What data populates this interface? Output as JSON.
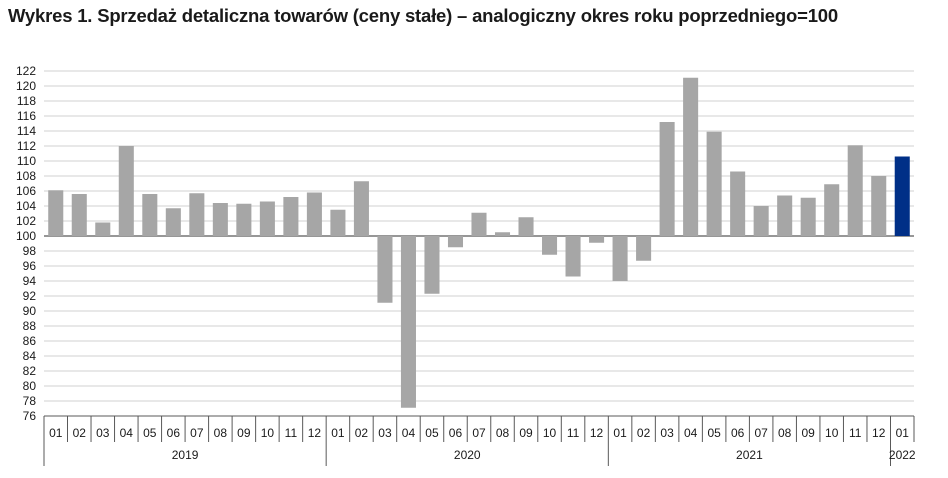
{
  "chart_data": {
    "type": "bar",
    "title": "Wykres 1. Sprzedaż detaliczna towarów (ceny stałe) – analogiczny okres roku poprzedniego=100",
    "baseline": 100,
    "ylim": [
      76,
      122
    ],
    "ytick_step": 2,
    "grid": true,
    "colors": {
      "bar": "#a6a6a6",
      "highlight": "#002f87",
      "grid": "#d0d0d0",
      "axis": "#595959"
    },
    "highlight_index": 36,
    "years": [
      {
        "label": "2019",
        "start": 0,
        "count": 12
      },
      {
        "label": "2020",
        "start": 12,
        "count": 12
      },
      {
        "label": "2021",
        "start": 24,
        "count": 12
      },
      {
        "label": "2022",
        "start": 36,
        "count": 1
      }
    ],
    "categories": [
      "01",
      "02",
      "03",
      "04",
      "05",
      "06",
      "07",
      "08",
      "09",
      "10",
      "11",
      "12",
      "01",
      "02",
      "03",
      "04",
      "05",
      "06",
      "07",
      "08",
      "09",
      "10",
      "11",
      "12",
      "01",
      "02",
      "03",
      "04",
      "05",
      "06",
      "07",
      "08",
      "09",
      "10",
      "11",
      "12",
      "01"
    ],
    "values": [
      106.1,
      105.6,
      101.8,
      112.0,
      105.6,
      103.7,
      105.7,
      104.4,
      104.3,
      104.6,
      105.2,
      105.8,
      103.5,
      107.3,
      91.1,
      77.1,
      92.3,
      98.5,
      103.1,
      100.5,
      102.5,
      97.5,
      94.6,
      99.1,
      94.0,
      96.7,
      115.2,
      121.1,
      113.9,
      108.6,
      104.0,
      105.4,
      105.1,
      106.9,
      112.1,
      108.0,
      110.6
    ]
  }
}
